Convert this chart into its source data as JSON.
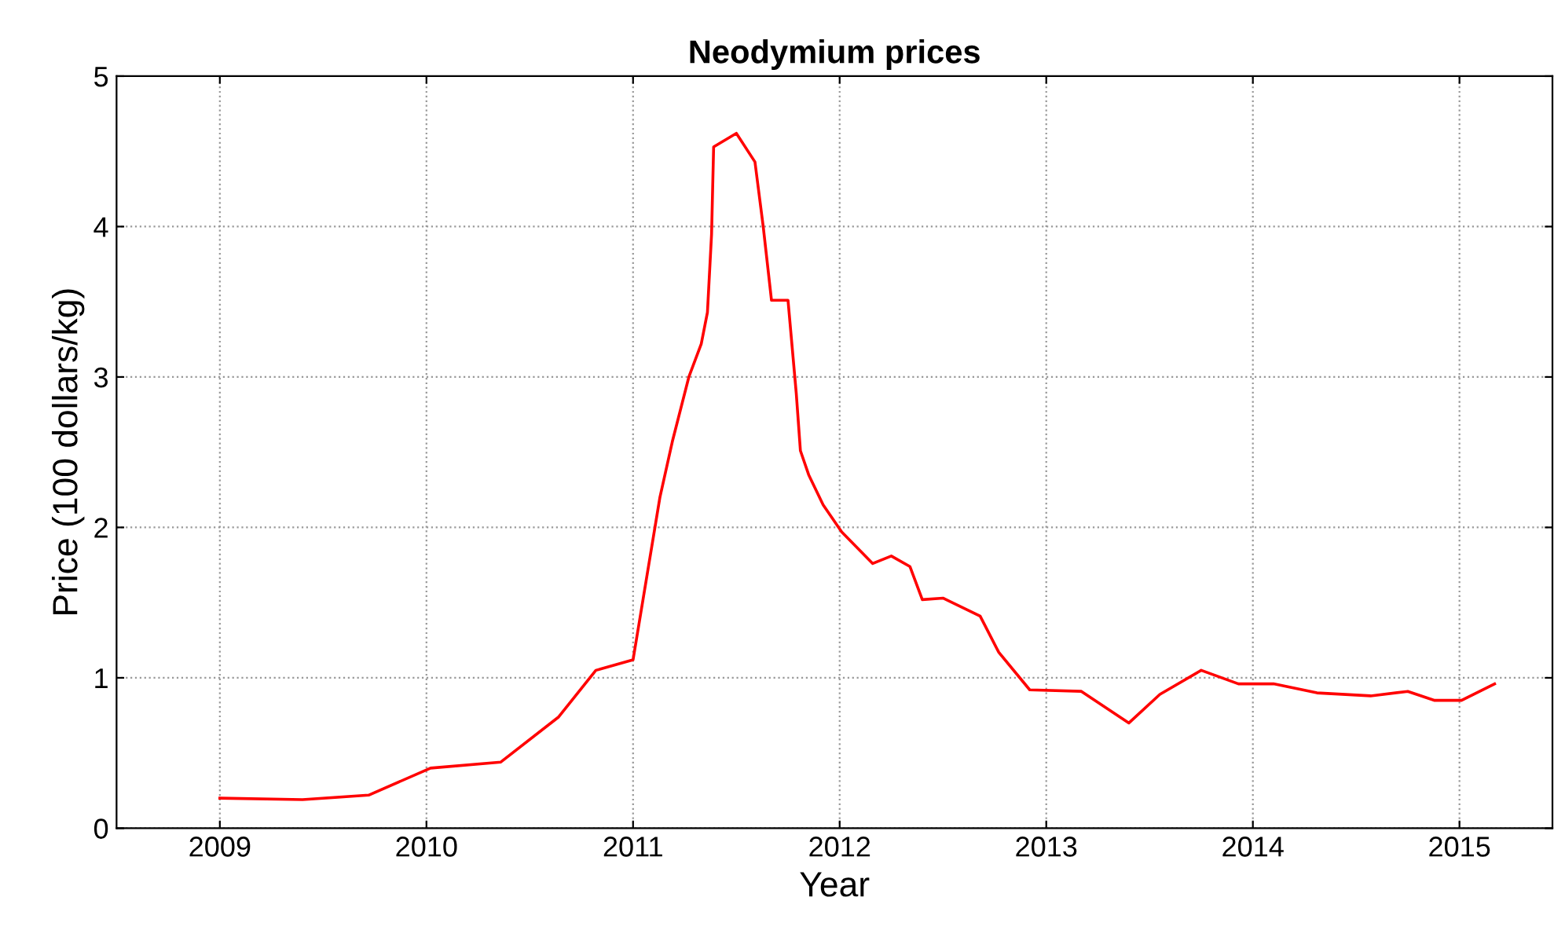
{
  "chart_data": {
    "type": "line",
    "title": "Neodymium prices",
    "xlabel": "Year",
    "ylabel": "Price (100 dollars/kg)",
    "xlim": [
      2008.5,
      2015.45
    ],
    "xticks": [
      2009,
      2010,
      2011,
      2012,
      2013,
      2014,
      2015
    ],
    "ylim": [
      0,
      5
    ],
    "yticks": [
      0,
      1,
      2,
      3,
      4,
      5
    ],
    "grid": true,
    "line_style": "solid",
    "marker": "none",
    "series": [
      {
        "color": "#ff0000",
        "x": [
          2009.0,
          2009.4,
          2009.72,
          2010.02,
          2010.36,
          2010.64,
          2010.82,
          2011.0,
          2011.13,
          2011.19,
          2011.27,
          2011.33,
          2011.36,
          2011.38,
          2011.39,
          2011.5,
          2011.59,
          2011.63,
          2011.67,
          2011.75,
          2011.79,
          2011.81,
          2011.85,
          2011.92,
          2012.01,
          2012.16,
          2012.25,
          2012.34,
          2012.4,
          2012.5,
          2012.68,
          2012.77,
          2012.92,
          2013.17,
          2013.4,
          2013.55,
          2013.75,
          2013.93,
          2014.1,
          2014.31,
          2014.57,
          2014.75,
          2014.88,
          2015.01,
          2015.17
        ],
        "values": [
          0.2,
          0.19,
          0.22,
          0.4,
          0.44,
          0.74,
          1.05,
          1.12,
          2.2,
          2.57,
          3.0,
          3.22,
          3.43,
          3.95,
          4.53,
          4.62,
          4.43,
          4.0,
          3.51,
          3.51,
          2.89,
          2.51,
          2.35,
          2.15,
          1.97,
          1.76,
          1.81,
          1.74,
          1.52,
          1.53,
          1.41,
          1.17,
          0.92,
          0.91,
          0.7,
          0.89,
          1.05,
          0.96,
          0.96,
          0.9,
          0.88,
          0.91,
          0.85,
          0.85,
          0.96
        ]
      }
    ]
  }
}
